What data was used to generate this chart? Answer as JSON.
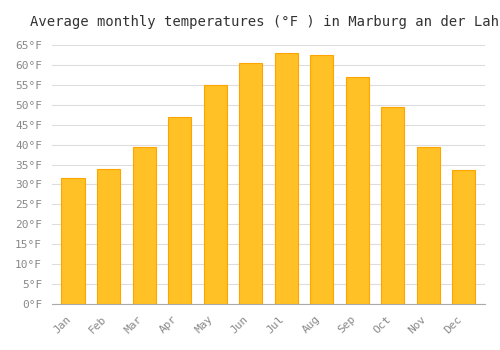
{
  "title": "Average monthly temperatures (°F ) in Marburg an der Lahn",
  "months": [
    "Jan",
    "Feb",
    "Mar",
    "Apr",
    "May",
    "Jun",
    "Jul",
    "Aug",
    "Sep",
    "Oct",
    "Nov",
    "Dec"
  ],
  "values": [
    31.5,
    34.0,
    39.5,
    47.0,
    55.0,
    60.5,
    63.0,
    62.5,
    57.0,
    49.5,
    39.5,
    33.5
  ],
  "bar_color_face": "#FFC125",
  "bar_color_edge": "#FFA500",
  "background_color": "#ffffff",
  "grid_color": "#dddddd",
  "tick_color": "#aaaaaa",
  "label_color": "#888888",
  "title_color": "#333333",
  "ylim": [
    0,
    67
  ],
  "yticks": [
    0,
    5,
    10,
    15,
    20,
    25,
    30,
    35,
    40,
    45,
    50,
    55,
    60,
    65
  ],
  "ytick_labels": [
    "0°F",
    "5°F",
    "10°F",
    "15°F",
    "20°F",
    "25°F",
    "30°F",
    "35°F",
    "40°F",
    "45°F",
    "50°F",
    "55°F",
    "60°F",
    "65°F"
  ],
  "title_fontsize": 10,
  "tick_fontsize": 8
}
